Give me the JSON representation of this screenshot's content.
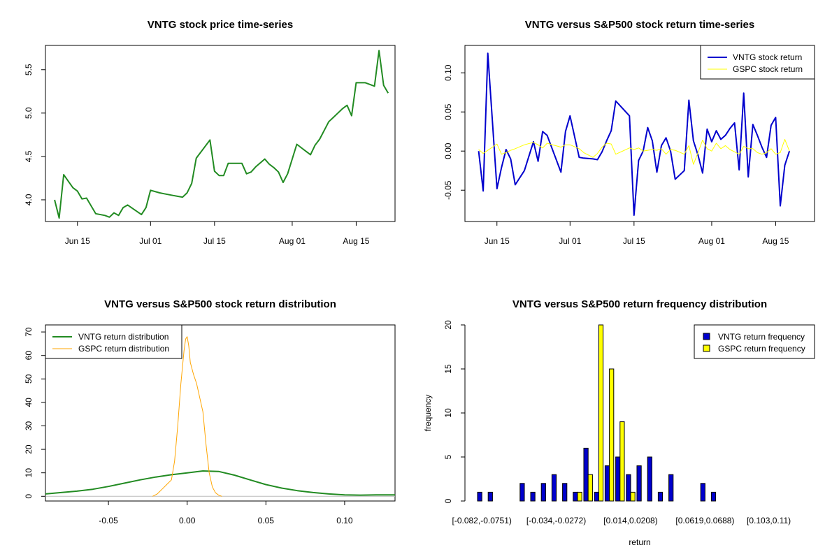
{
  "colors": {
    "vntg_price": "#228B22",
    "vntg_return": "#0000CD",
    "gspc_return": "#FFFF00",
    "vntg_density": "#228B22",
    "gspc_density": "#FFA500",
    "vntg_freq": "#0000CD",
    "gspc_freq": "#FFFF00"
  },
  "chart_data": [
    {
      "type": "line",
      "title": "VNTG stock price time-series",
      "xlabel": "",
      "ylabel": "",
      "x_ticks": [
        "Jun 15",
        "Jul 01",
        "Jul 15",
        "Aug 01",
        "Aug 15"
      ],
      "x_tick_days": [
        15,
        31,
        45,
        62,
        76
      ],
      "ylim": [
        3.75,
        5.78
      ],
      "y_ticks": [
        "4.0",
        "4.5",
        "5.0",
        "5.5"
      ],
      "y_tick_values": [
        4.0,
        4.5,
        5.0,
        5.5
      ],
      "series": [
        {
          "x": [
            10,
            11,
            12,
            14,
            15,
            16,
            17,
            19,
            21,
            22,
            23,
            24,
            25,
            26,
            29,
            30,
            31,
            33,
            34,
            36,
            37,
            38,
            39,
            40,
            41,
            44,
            45,
            46,
            47,
            48,
            49,
            50,
            51,
            52,
            53,
            54,
            56,
            57,
            58,
            59,
            60,
            61,
            63,
            64,
            65,
            66,
            67,
            68,
            69,
            70,
            71,
            72,
            73,
            74,
            75,
            76,
            78,
            80,
            81
          ],
          "y": [
            4.0,
            3.79,
            4.29,
            4.14,
            4.1,
            4.01,
            4.02,
            3.84,
            3.82,
            3.8,
            3.85,
            3.82,
            3.91,
            3.94,
            3.83,
            3.91,
            4.11,
            4.08,
            4.07,
            4.05,
            4.04,
            4.03,
            4.08,
            4.19,
            4.48,
            4.69,
            4.33,
            4.28,
            4.28,
            4.42,
            4.42,
            4.42,
            4.42,
            4.3,
            4.32,
            4.38,
            4.47,
            4.41,
            4.37,
            4.32,
            4.2,
            4.3,
            4.64,
            4.6,
            4.56,
            4.52,
            4.63,
            4.7,
            4.8,
            4.9,
            4.95,
            5.0,
            5.05,
            5.09,
            4.97,
            5.35,
            5.35,
            5.31,
            5.72
          ]
        }
      ],
      "tail": {
        "x": [
          82,
          83
        ],
        "y": [
          5.32,
          5.23
        ]
      }
    },
    {
      "type": "line",
      "title": "VNTG versus S&P500 stock return time-series",
      "xlabel": "",
      "ylabel": "",
      "x_ticks": [
        "Jun 15",
        "Jul 01",
        "Jul 15",
        "Aug 01",
        "Aug 15"
      ],
      "x_tick_days": [
        15,
        31,
        45,
        62,
        76
      ],
      "ylim": [
        -0.09,
        0.135
      ],
      "y_ticks": [
        "-0.05",
        "0.00",
        "0.05",
        "0.10"
      ],
      "y_tick_values": [
        -0.05,
        0.0,
        0.05,
        0.1
      ],
      "legend": {
        "position": "top-right",
        "entries": [
          "VNTG stock return",
          "GSPC stock return"
        ]
      },
      "series": [
        {
          "name": "VNTG stock return",
          "x": [
            11,
            12,
            13,
            15,
            16,
            17,
            18,
            19,
            21,
            23,
            24,
            25,
            26,
            29,
            30,
            31,
            33,
            34,
            36,
            37,
            38,
            39,
            40,
            41,
            44,
            45,
            46,
            47,
            48,
            49,
            50,
            51,
            52,
            53,
            54,
            56,
            57,
            58,
            59,
            60,
            61,
            62,
            63,
            64,
            65,
            66,
            67,
            68,
            69,
            70,
            71,
            72,
            73,
            74,
            75,
            76,
            77,
            78,
            79,
            80,
            81,
            82
          ],
          "y": [
            0.0,
            -0.051,
            0.125,
            -0.048,
            -0.021,
            0.002,
            -0.01,
            -0.043,
            -0.025,
            0.012,
            -0.013,
            0.025,
            0.02,
            -0.027,
            0.025,
            0.045,
            -0.008,
            -0.009,
            -0.01,
            -0.011,
            -0.001,
            0.013,
            0.026,
            0.064,
            0.045,
            -0.082,
            -0.012,
            0.0,
            0.03,
            0.013,
            -0.027,
            0.007,
            0.017,
            0.0,
            -0.036,
            -0.025,
            0.065,
            0.013,
            -0.005,
            -0.028,
            0.028,
            0.012,
            0.026,
            0.015,
            0.02,
            0.029,
            0.036,
            -0.024,
            0.074,
            -0.033,
            0.034,
            0.02,
            0.005,
            -0.008,
            0.033,
            0.043,
            -0.07,
            -0.018,
            0.0,
            0.0,
            0.0,
            0.0
          ]
        },
        {
          "name": "GSPC stock return",
          "x": [
            11,
            12,
            13,
            15,
            16,
            17,
            18,
            19,
            21,
            23,
            24,
            25,
            26,
            29,
            30,
            31,
            33,
            34,
            36,
            37,
            38,
            39,
            40,
            41,
            44,
            45,
            46,
            47,
            48,
            49,
            50,
            51,
            52,
            53,
            54,
            56,
            57,
            58,
            59,
            60,
            61,
            62,
            63,
            64,
            65,
            66,
            67,
            68,
            69,
            70,
            71,
            72,
            73,
            74,
            75,
            76,
            77,
            78,
            79,
            80,
            81,
            82
          ],
          "y": [
            0.002,
            -0.003,
            0.001,
            0.009,
            -0.004,
            -0.002,
            0.001,
            0.003,
            0.008,
            0.011,
            0.008,
            0.004,
            0.01,
            0.005,
            0.008,
            0.008,
            0.003,
            -0.002,
            -0.008,
            -0.003,
            0.005,
            0.01,
            0.009,
            -0.004,
            0.004,
            0.002,
            0.004,
            0.0,
            0.001,
            0.002,
            0.001,
            0.003,
            -0.004,
            0.002,
            0.001,
            -0.004,
            0.007,
            -0.017,
            -0.002,
            0.014,
            0.003,
            0.0,
            0.01,
            0.003,
            0.007,
            0.002,
            -0.001,
            -0.004,
            0.006,
            0.003,
            0.003,
            -0.002,
            -0.004,
            -0.002,
            0.003,
            -0.004,
            -0.002,
            0.015,
            0.0,
            0.0,
            0.0,
            0.0
          ]
        }
      ]
    },
    {
      "type": "line",
      "title": "VNTG versus S&P500 stock return distribution",
      "xlabel": "",
      "ylabel": "",
      "xlim": [
        -0.09,
        0.132
      ],
      "ylim": [
        -2,
        73
      ],
      "x_ticks": [
        "-0.05",
        "0.00",
        "0.05",
        "0.10"
      ],
      "x_tick_values": [
        -0.05,
        0.0,
        0.05,
        0.1
      ],
      "y_ticks": [
        "0",
        "10",
        "20",
        "30",
        "40",
        "50",
        "60",
        "70"
      ],
      "y_tick_values": [
        0,
        10,
        20,
        30,
        40,
        50,
        60,
        70
      ],
      "legend": {
        "position": "top-left",
        "entries": [
          "VNTG return distribution",
          "GSPC return distribution"
        ]
      },
      "series": [
        {
          "name": "VNTG return distribution",
          "x": [
            -0.09,
            -0.08,
            -0.07,
            -0.06,
            -0.05,
            -0.04,
            -0.03,
            -0.02,
            -0.01,
            0.0,
            0.01,
            0.02,
            0.03,
            0.04,
            0.05,
            0.06,
            0.07,
            0.08,
            0.09,
            0.1,
            0.11,
            0.12,
            0.132
          ],
          "y": [
            1.0,
            1.6,
            2.2,
            3.0,
            4.2,
            5.6,
            7.0,
            8.2,
            9.2,
            10.0,
            10.8,
            10.6,
            9.0,
            7.0,
            5.0,
            3.5,
            2.4,
            1.6,
            1.0,
            0.6,
            0.5,
            0.6,
            0.6
          ]
        },
        {
          "name": "GSPC return distribution",
          "x": [
            -0.022,
            -0.019,
            -0.016,
            -0.013,
            -0.01,
            -0.008,
            -0.006,
            -0.004,
            -0.002,
            -0.001,
            0.0,
            0.001,
            0.002,
            0.004,
            0.006,
            0.008,
            0.01,
            0.012,
            0.014,
            0.016,
            0.018,
            0.02,
            0.022
          ],
          "y": [
            0,
            1,
            3,
            5,
            7,
            15,
            30,
            48,
            62,
            67,
            68,
            64,
            57,
            52,
            48,
            42,
            36,
            22,
            10,
            4,
            1.5,
            0.5,
            0
          ]
        }
      ],
      "baseline_y": 0
    },
    {
      "type": "bar",
      "title": "VNTG versus S&P500 return frequency distribution",
      "xlabel": "return",
      "ylabel": "frequency",
      "ylim": [
        0,
        20
      ],
      "y_ticks": [
        "0",
        "5",
        "10",
        "15",
        "20"
      ],
      "y_tick_values": [
        0,
        5,
        10,
        15,
        20
      ],
      "x_tick_labels": [
        "[-0.082,-0.0751)",
        "[-0.034,-0.0272)",
        "[0.014,0.0208)",
        "[0.0619,0.0688)",
        "[0.103,0.11)"
      ],
      "x_tick_bins": [
        0,
        7,
        14,
        21,
        27
      ],
      "legend": {
        "position": "top-right",
        "entries": [
          "VNTG return frequency",
          "GSPC return frequency"
        ]
      },
      "series": [
        {
          "name": "VNTG return frequency",
          "values": [
            1,
            1,
            0,
            0,
            2,
            1,
            2,
            3,
            2,
            1,
            6,
            1,
            4,
            5,
            3,
            4,
            5,
            1,
            3,
            0,
            0,
            2,
            1,
            0,
            0,
            0,
            0,
            0,
            0,
            0,
            0,
            0
          ]
        },
        {
          "name": "GSPC return frequency",
          "values": [
            0,
            0,
            0,
            0,
            0,
            0,
            0,
            0,
            0,
            1,
            3,
            20,
            15,
            9,
            1,
            0,
            0,
            0,
            0,
            0,
            0,
            0,
            0,
            0,
            0,
            0,
            0,
            0,
            0,
            0,
            0,
            0
          ]
        }
      ]
    }
  ]
}
